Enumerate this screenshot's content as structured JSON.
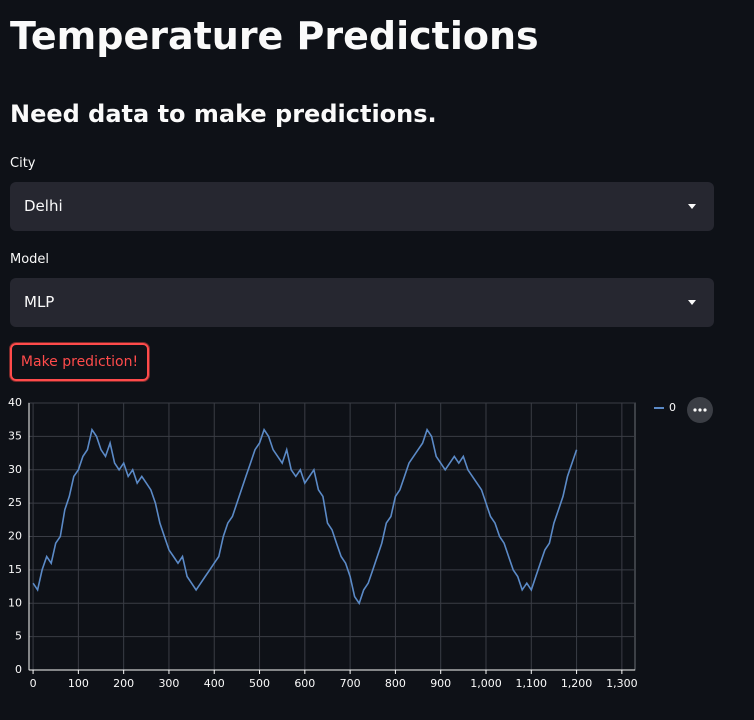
{
  "header": {
    "title": "Temperature Predictions",
    "subtitle": "Need data to make predictions."
  },
  "form": {
    "city": {
      "label": "City",
      "value": "Delhi"
    },
    "model": {
      "label": "Model",
      "value": "MLP"
    },
    "button": "Make prediction!"
  },
  "chart": {
    "type": "line",
    "x": [
      0,
      10,
      20,
      30,
      40,
      50,
      60,
      70,
      80,
      90,
      100,
      110,
      120,
      130,
      140,
      150,
      160,
      170,
      180,
      190,
      200,
      210,
      220,
      230,
      240,
      250,
      260,
      270,
      280,
      290,
      300,
      310,
      320,
      330,
      340,
      350,
      360,
      370,
      380,
      390,
      400,
      410,
      420,
      430,
      440,
      450,
      460,
      470,
      480,
      490,
      500,
      510,
      520,
      530,
      540,
      550,
      560,
      570,
      580,
      590,
      600,
      610,
      620,
      630,
      640,
      650,
      660,
      670,
      680,
      690,
      700,
      710,
      720,
      730,
      740,
      750,
      760,
      770,
      780,
      790,
      800,
      810,
      820,
      830,
      840,
      850,
      860,
      870,
      880,
      890,
      900,
      910,
      920,
      930,
      940,
      950,
      960,
      970,
      980,
      990,
      1000,
      1010,
      1020,
      1030,
      1040,
      1050,
      1060,
      1070,
      1080,
      1090,
      1100,
      1110,
      1120,
      1130,
      1140,
      1150,
      1160,
      1170,
      1180,
      1190,
      1200
    ],
    "series": [
      {
        "name": "0",
        "color": "#5b8ac7",
        "values": [
          13,
          12,
          15,
          17,
          16,
          19,
          20,
          24,
          26,
          29,
          30,
          32,
          33,
          36,
          35,
          33,
          32,
          34,
          31,
          30,
          31,
          29,
          30,
          28,
          29,
          28,
          27,
          25,
          22,
          20,
          18,
          17,
          16,
          17,
          14,
          13,
          12,
          13,
          14,
          15,
          16,
          17,
          20,
          22,
          23,
          25,
          27,
          29,
          31,
          33,
          34,
          36,
          35,
          33,
          32,
          31,
          33,
          30,
          29,
          30,
          28,
          29,
          30,
          27,
          26,
          22,
          21,
          19,
          17,
          16,
          14,
          11,
          10,
          12,
          13,
          15,
          17,
          19,
          22,
          23,
          26,
          27,
          29,
          31,
          32,
          33,
          34,
          36,
          35,
          32,
          31,
          30,
          31,
          32,
          31,
          32,
          30,
          29,
          28,
          27,
          25,
          23,
          22,
          20,
          19,
          17,
          15,
          14,
          12,
          13,
          12,
          14,
          16,
          18,
          19,
          22,
          24,
          26,
          29,
          31,
          33
        ]
      }
    ],
    "xlim": [
      -9,
      1329
    ],
    "ylim": [
      0,
      40
    ],
    "xticks": [
      0,
      100,
      200,
      300,
      400,
      500,
      600,
      700,
      800,
      900,
      {
        "value": 1000,
        "label": "1,000"
      },
      {
        "value": 1100,
        "label": "1,100"
      },
      {
        "value": 1200,
        "label": "1,200"
      },
      {
        "value": 1300,
        "label": "1,300"
      }
    ],
    "yticks": [
      0,
      5,
      10,
      15,
      20,
      25,
      30,
      35,
      40
    ],
    "grid": true,
    "legend": "right"
  }
}
